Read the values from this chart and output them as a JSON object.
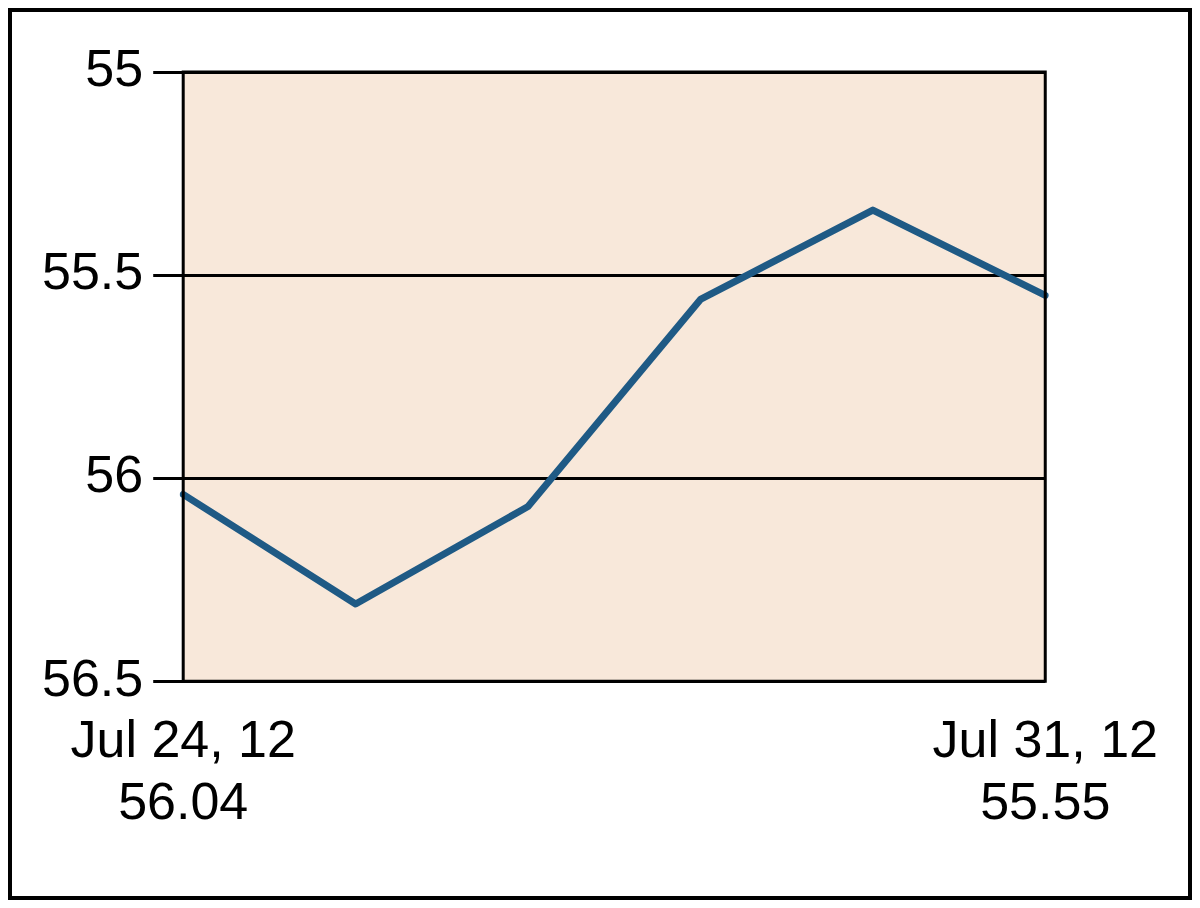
{
  "chart_data": {
    "type": "line",
    "categories": [
      "Jul 24, 12",
      null,
      null,
      null,
      null,
      "Jul 31, 12"
    ],
    "series": [
      {
        "color": "#1f5a85",
        "values": [
          56.04,
          56.31,
          56.07,
          55.56,
          55.34,
          55.55
        ],
        "value_labels": [
          "56.04",
          null,
          null,
          null,
          null,
          "55.55"
        ]
      }
    ],
    "ylim": [
      56.5,
      55
    ],
    "yticks": [
      55,
      55.5,
      56,
      56.5
    ],
    "grid": "y",
    "legend": false,
    "marker": "none",
    "line_style": "solid"
  }
}
